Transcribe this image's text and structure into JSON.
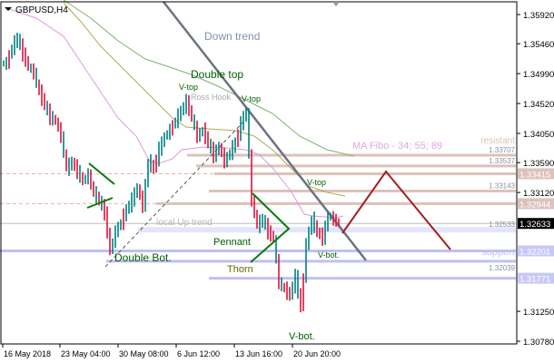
{
  "chart_data": {
    "type": "ohlc",
    "symbol": "GBPUSD,H4",
    "ylim": [
      1.306,
      1.3603
    ],
    "y_ticks": [
      "1.35920",
      "1.35460",
      "1.34990",
      "1.34520",
      "1.34050",
      "1.33590",
      "1.33120",
      "1.31250",
      "1.30780"
    ],
    "x_ticks": [
      "16 May 2018",
      "23 May 04:00",
      "30 May 08:00",
      "6 Jun 12:00",
      "13 Jun 16:00",
      "20 Jun 20:00"
    ],
    "closes": [
      1.3515,
      1.354,
      1.3555,
      1.353,
      1.351,
      1.35,
      1.347,
      1.345,
      1.343,
      1.3425,
      1.34,
      1.335,
      1.336,
      1.3345,
      1.333,
      1.334,
      1.331,
      1.33,
      1.328,
      1.322,
      1.325,
      1.3265,
      1.3285,
      1.33,
      1.332,
      1.329,
      1.336,
      1.335,
      1.338,
      1.34,
      1.341,
      1.3425,
      1.344,
      1.3455,
      1.343,
      1.34,
      1.341,
      1.339,
      1.337,
      1.3385,
      1.336,
      1.3375,
      1.339,
      1.342,
      1.344,
      1.33,
      1.326,
      1.327,
      1.325,
      1.324,
      1.317,
      1.316,
      1.315,
      1.318,
      1.313,
      1.323,
      1.327,
      1.325,
      1.324,
      1.3275,
      1.327,
      1.3263
    ],
    "levels": [
      {
        "price": "1.33707",
        "kind": "resistance"
      },
      {
        "price": "1.33537",
        "kind": "resistance"
      },
      {
        "price": "1.33415",
        "kind": "resistance",
        "tag": true
      },
      {
        "price": "1.33143",
        "kind": "resistance"
      },
      {
        "price": "1.32944",
        "kind": "resistance",
        "tag": true
      },
      {
        "price": "1.32633",
        "kind": "current",
        "tag": true
      },
      {
        "price": "1.32533",
        "kind": "support"
      },
      {
        "price": "1.32201",
        "kind": "support",
        "tag": true
      },
      {
        "price": "1.32039",
        "kind": "support"
      },
      {
        "price": "1.31771",
        "kind": "support",
        "tag": true
      }
    ],
    "annotations": {
      "down_trend": "Down trend",
      "double_top": "Double top",
      "v_top_1": "V-top",
      "v_top_2": "V-top",
      "v_top_3": "V-top",
      "ross_hook": "Ross Hook",
      "ma_fibo": "MA Fibo - 34; 55; 89",
      "resistant": "resistant",
      "support": "support",
      "local_up_trend": "local  Up trend",
      "pennant": "Pennant",
      "thorn": "Thorn",
      "double_bot": "Double Bot.",
      "v_bot_1": "V-bot.",
      "v_bot_2": "V-bot."
    },
    "colors": {
      "up": "#008080",
      "down": "#e0103c",
      "ma34": "#dd99dd",
      "ma55": "#b5a852",
      "ma89": "#80b070",
      "resist": "#dcc2bc",
      "support": "#c0c0f4",
      "trend": "#6b7280",
      "forecast": "#a02020",
      "pattern": "#0a7a0a"
    }
  }
}
